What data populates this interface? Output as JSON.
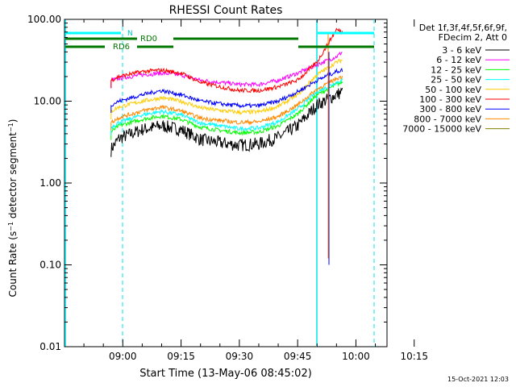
{
  "stamp": "15-Oct-2021 12:03",
  "chart_data": {
    "type": "line",
    "title": "RHESSI Count Rates",
    "xlabel": "Start Time (13-May-06 08:45:02)",
    "ylabel": "Count Rate (s⁻¹ detector segment⁻¹)",
    "y_scale": "log",
    "ylim": [
      0.01,
      100
    ],
    "xlim_minutes": [
      0,
      83
    ],
    "x_ticks": [
      "09:00",
      "09:15",
      "09:30",
      "09:45",
      "10:00",
      "10:15"
    ],
    "y_ticks": [
      "0.01",
      "0.10",
      "1.00",
      "10.00",
      "100.00"
    ],
    "legend_header": [
      "Det 1f,3f,4f,5f,6f,9f,",
      "FDecim 2, Att 0"
    ],
    "series": [
      {
        "name": "3 - 6 keV",
        "color": "#000000",
        "values_at_minutes": [
          [
            12,
            2.6
          ],
          [
            14,
            3.5
          ],
          [
            20,
            4.5
          ],
          [
            25,
            5
          ],
          [
            30,
            4.5
          ],
          [
            35,
            3.4
          ],
          [
            40,
            3.1
          ],
          [
            45,
            2.9
          ],
          [
            50,
            3.0
          ],
          [
            55,
            3.6
          ],
          [
            60,
            5
          ],
          [
            65,
            9
          ],
          [
            70,
            12
          ],
          [
            71.5,
            13
          ]
        ]
      },
      {
        "name": "6 - 12 keV",
        "color": "#ff00ff",
        "values_at_minutes": [
          [
            12,
            18
          ],
          [
            14,
            19
          ],
          [
            20,
            21
          ],
          [
            25,
            22
          ],
          [
            30,
            21
          ],
          [
            35,
            18
          ],
          [
            40,
            17
          ],
          [
            45,
            16
          ],
          [
            50,
            16
          ],
          [
            55,
            18
          ],
          [
            60,
            22
          ],
          [
            65,
            28
          ],
          [
            70,
            35
          ],
          [
            71.5,
            40
          ]
        ]
      },
      {
        "name": "12 - 25 keV",
        "color": "#00ff00",
        "values_at_minutes": [
          [
            12,
            4.2
          ],
          [
            14,
            5
          ],
          [
            20,
            6
          ],
          [
            25,
            6.6
          ],
          [
            30,
            6
          ],
          [
            35,
            4.8
          ],
          [
            40,
            4.4
          ],
          [
            45,
            4.1
          ],
          [
            50,
            4.2
          ],
          [
            55,
            5
          ],
          [
            60,
            7
          ],
          [
            65,
            12
          ],
          [
            70,
            16
          ],
          [
            71.5,
            17
          ]
        ]
      },
      {
        "name": "25 - 50 keV",
        "color": "#00ffff",
        "values_at_minutes": [
          [
            12,
            4.8
          ],
          [
            14,
            5.5
          ],
          [
            20,
            6.8
          ],
          [
            25,
            7.5
          ],
          [
            30,
            6.8
          ],
          [
            35,
            5.4
          ],
          [
            40,
            5
          ],
          [
            45,
            4.6
          ],
          [
            50,
            4.7
          ],
          [
            55,
            5.6
          ],
          [
            60,
            8
          ],
          [
            65,
            13
          ],
          [
            70,
            17
          ],
          [
            71.5,
            18
          ]
        ]
      },
      {
        "name": "50 - 100 keV",
        "color": "#ffcc00",
        "values_at_minutes": [
          [
            12,
            7.5
          ],
          [
            14,
            8.5
          ],
          [
            20,
            10
          ],
          [
            25,
            11
          ],
          [
            30,
            10
          ],
          [
            35,
            8.3
          ],
          [
            40,
            7.7
          ],
          [
            45,
            7.3
          ],
          [
            50,
            7.4
          ],
          [
            55,
            8.6
          ],
          [
            60,
            12
          ],
          [
            65,
            21
          ],
          [
            70,
            30
          ],
          [
            71.5,
            32
          ]
        ]
      },
      {
        "name": "100 - 300 keV",
        "color": "#ff0000",
        "values_at_minutes": [
          [
            12,
            18
          ],
          [
            14,
            20
          ],
          [
            20,
            23
          ],
          [
            25,
            24
          ],
          [
            30,
            22
          ],
          [
            35,
            17
          ],
          [
            40,
            15
          ],
          [
            45,
            13.5
          ],
          [
            50,
            13.5
          ],
          [
            55,
            15
          ],
          [
            60,
            18
          ],
          [
            65,
            30
          ],
          [
            70,
            75
          ],
          [
            71.5,
            70
          ]
        ]
      },
      {
        "name": "300 - 800 keV",
        "color": "#0000ff",
        "values_at_minutes": [
          [
            12,
            9
          ],
          [
            14,
            10
          ],
          [
            20,
            12
          ],
          [
            25,
            13.5
          ],
          [
            30,
            12
          ],
          [
            35,
            10
          ],
          [
            40,
            9.3
          ],
          [
            45,
            8.8
          ],
          [
            50,
            8.8
          ],
          [
            55,
            10
          ],
          [
            60,
            13
          ],
          [
            65,
            18
          ],
          [
            70,
            23
          ],
          [
            71.5,
            24
          ]
        ]
      },
      {
        "name": "800 - 7000 keV",
        "color": "#ff8800",
        "values_at_minutes": [
          [
            12,
            5.5
          ],
          [
            14,
            6.3
          ],
          [
            20,
            7.6
          ],
          [
            25,
            8.5
          ],
          [
            30,
            7.6
          ],
          [
            35,
            6.2
          ],
          [
            40,
            5.8
          ],
          [
            45,
            5.5
          ],
          [
            50,
            5.6
          ],
          [
            55,
            6.5
          ],
          [
            60,
            9
          ],
          [
            65,
            14
          ],
          [
            70,
            19
          ],
          [
            71.5,
            20
          ]
        ]
      },
      {
        "name": "7000 - 15000 keV",
        "color": "#808000",
        "values_at_minutes": []
      }
    ],
    "annotations": [
      "N",
      "RD0",
      "RD6"
    ]
  }
}
